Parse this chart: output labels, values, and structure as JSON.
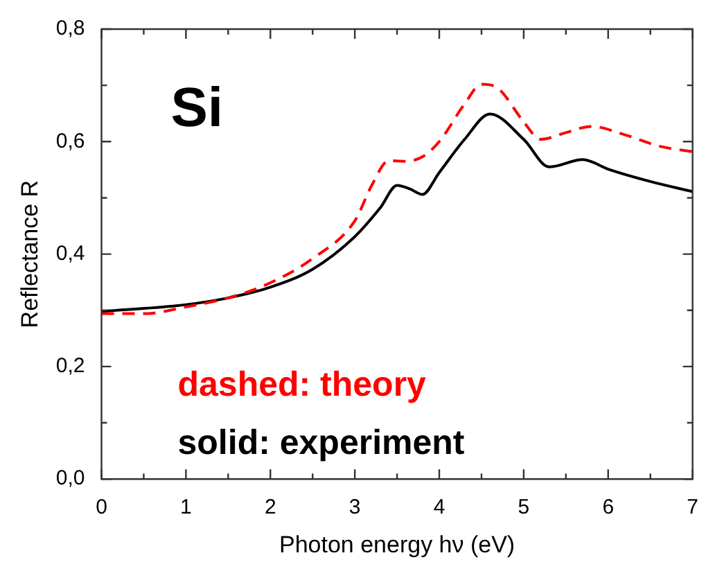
{
  "chart_data": {
    "type": "line",
    "xlabel": "Photon energy hν (eV)",
    "ylabel": "Reflectance R",
    "annotations": [
      "Si"
    ],
    "xlim": [
      0,
      7
    ],
    "ylim": [
      0,
      0.8
    ],
    "xticks": [
      0,
      {
        "value": 0.5,
        "label": null
      },
      1,
      {
        "value": 1.5,
        "label": null
      },
      2,
      {
        "value": 2.5,
        "label": null
      },
      3,
      {
        "value": 3.5,
        "label": null
      },
      4,
      {
        "value": 4.5,
        "label": null
      },
      5,
      {
        "value": 5.5,
        "label": null
      },
      6,
      {
        "value": 6.5,
        "label": null
      },
      7
    ],
    "yticks": [
      {
        "value": 0,
        "label": "0,0"
      },
      {
        "value": 0.1,
        "label": null
      },
      {
        "value": 0.2,
        "label": "0,2"
      },
      {
        "value": 0.3,
        "label": null
      },
      {
        "value": 0.4,
        "label": "0,4"
      },
      {
        "value": 0.5,
        "label": null
      },
      {
        "value": 0.6,
        "label": "0,6"
      },
      {
        "value": 0.7,
        "label": null
      },
      {
        "value": 0.8,
        "label": "0,8"
      }
    ],
    "grid": false,
    "legend": "bottom left",
    "marker": "none",
    "series": [
      {
        "name": "dashed: theory",
        "color": "#ff0000",
        "line_style": "dashed",
        "x": [
          0,
          0.5,
          1,
          1.5,
          2,
          2.5,
          3,
          3.2,
          3.4,
          3.6,
          3.8,
          4,
          4.3,
          4.5,
          4.7,
          5,
          5.2,
          5.5,
          5.8,
          6.2,
          6.6,
          7
        ],
        "values": [
          0.294,
          0.294,
          0.306,
          0.322,
          0.349,
          0.392,
          0.459,
          0.522,
          0.566,
          0.565,
          0.573,
          0.6,
          0.667,
          0.702,
          0.694,
          0.635,
          0.604,
          0.616,
          0.627,
          0.612,
          0.592,
          0.582
        ]
      },
      {
        "name": "solid: experiment",
        "color": "#000000",
        "line_style": "solid",
        "x": [
          0,
          1,
          1.5,
          2,
          2.5,
          3,
          3.3,
          3.5,
          3.65,
          3.8,
          4,
          4.3,
          4.6,
          5,
          5.3,
          5.7,
          6,
          6.5,
          7
        ],
        "values": [
          0.298,
          0.31,
          0.322,
          0.341,
          0.373,
          0.431,
          0.482,
          0.522,
          0.516,
          0.506,
          0.545,
          0.604,
          0.649,
          0.604,
          0.555,
          0.568,
          0.551,
          0.529,
          0.511
        ]
      }
    ]
  }
}
